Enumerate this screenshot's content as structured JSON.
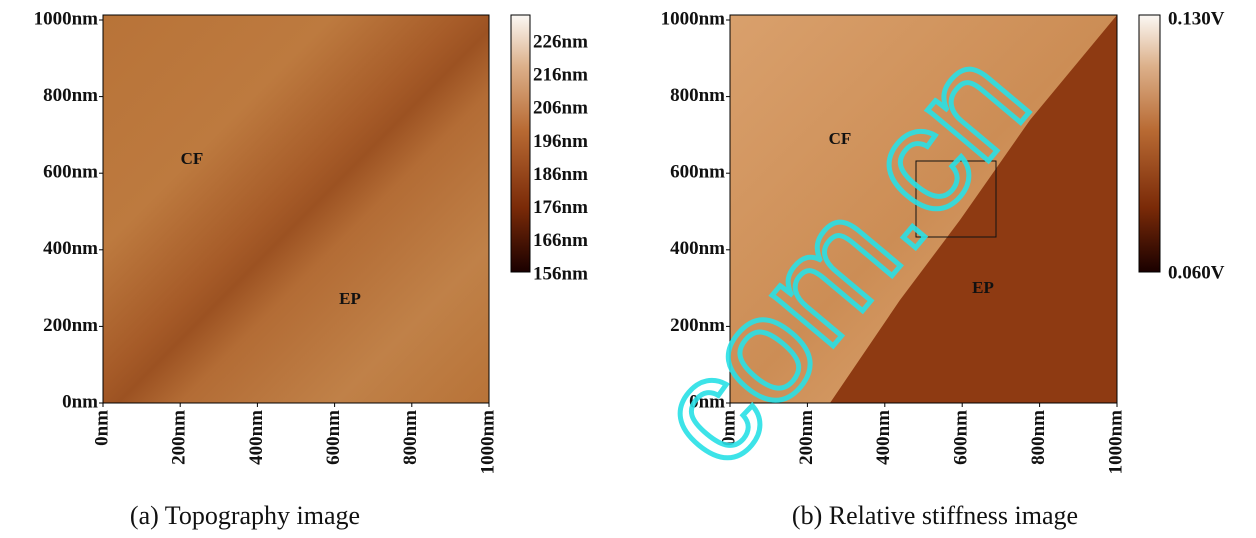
{
  "panels": [
    {
      "y_ticks": [
        "1000nm",
        "800nm",
        "600nm",
        "400nm",
        "200nm",
        "0nm"
      ],
      "x_ticks": [
        "0nm",
        "200nm",
        "400nm",
        "600nm",
        "800nm",
        "1000nm"
      ],
      "colorbar_labels": [
        "226nm",
        "216nm",
        "206nm",
        "196nm",
        "186nm",
        "176nm",
        "166nm",
        "156nm"
      ],
      "annotations": [
        "CF",
        "EP"
      ],
      "caption": "(a) Topography image"
    },
    {
      "y_ticks": [
        "1000nm",
        "800nm",
        "600nm",
        "400nm",
        "200nm",
        "0nm"
      ],
      "x_ticks": [
        "0nm",
        "200nm",
        "400nm",
        "600nm",
        "800nm",
        "1000nm"
      ],
      "colorbar_labels": [
        "0.130V",
        "0.060V"
      ],
      "annotations": [
        "CF",
        "EP"
      ],
      "caption": "(b) Relative stiffness image"
    }
  ],
  "watermark": "com.cn"
}
